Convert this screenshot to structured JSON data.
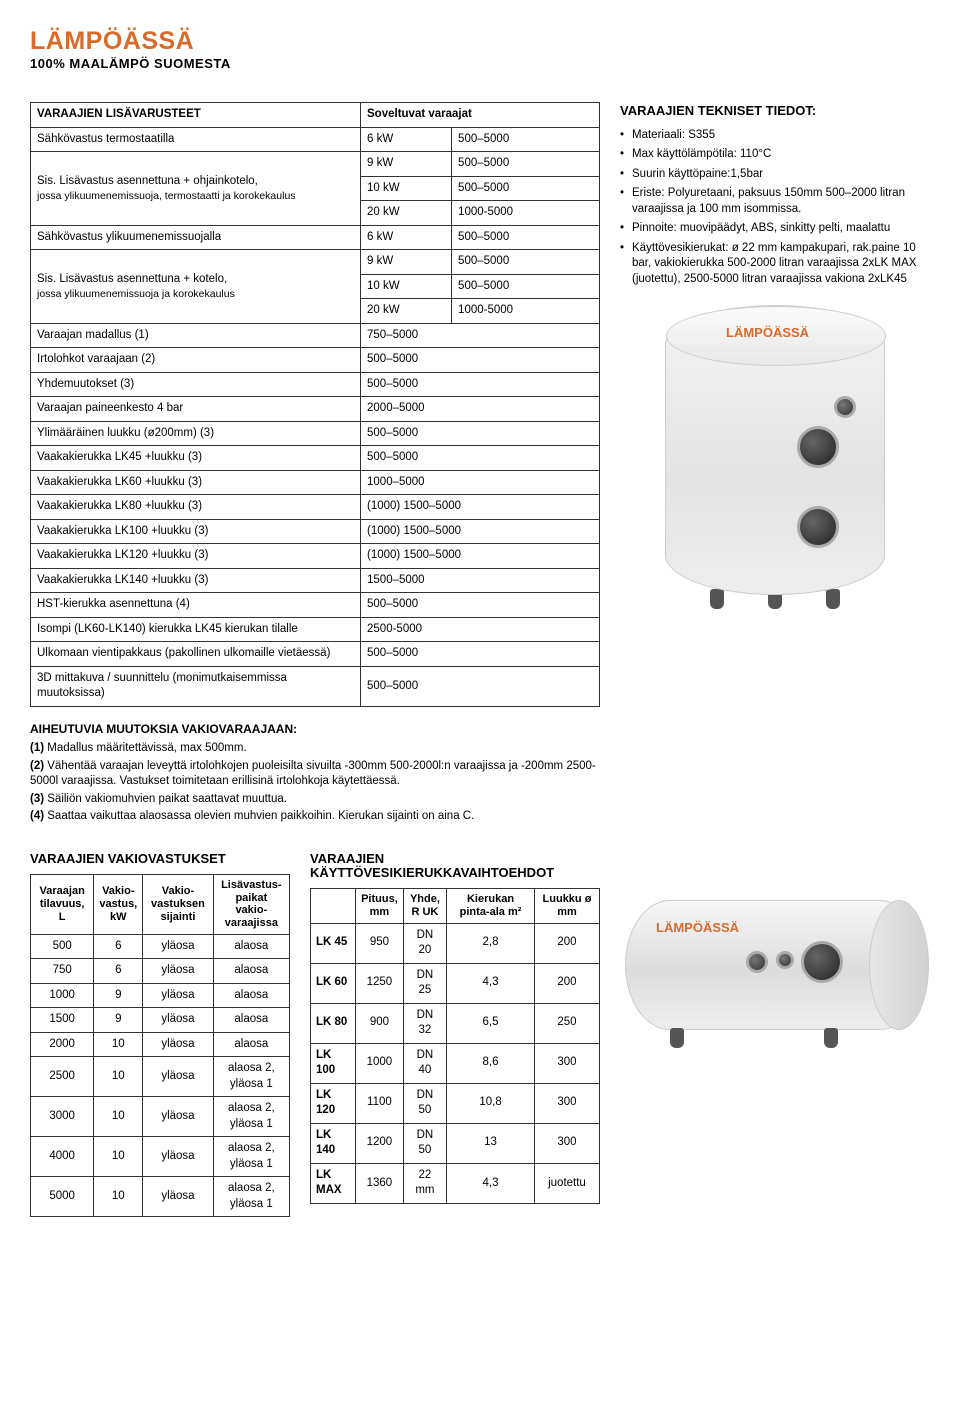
{
  "brand": {
    "main": "LÄMPÖÄSSÄ",
    "sub": "100% MAALÄMPÖ SUOMESTA"
  },
  "headings": {
    "accessories": "VARAAJIEN LISÄVARUSTEET",
    "suitable": "Soveltuvat varaajat",
    "tech": "VARAAJIEN TEKNISET TIEDOT:",
    "notesTitle": "AIHEUTUVIA MUUTOKSIA VAKIOVARAAJAAN:",
    "stdRes": "VARAAJIEN VAKIOVASTUKSET",
    "coils": "VARAAJIEN KÄYTTÖVESIKIERUKKAVAIHTOEHDOT"
  },
  "mainRows": [
    {
      "label": "Sähkövastus termostaatilla",
      "sub": "",
      "col1": "6 kW",
      "col2": "500–5000"
    },
    {
      "label": "Sis. Lisävastus asennettuna + ohjainkotelo,",
      "sub": "jossa ylikuumenemissuoja, termostaatti ja korokekaulus",
      "col1": "9 kW",
      "col2": "500–5000",
      "rowspan": 3
    },
    {
      "col1": "10 kW",
      "col2": "500–5000"
    },
    {
      "col1": "20 kW",
      "col2": "1000-5000"
    },
    {
      "label": "Sähkövastus ylikuumenemissuojalla",
      "sub": "",
      "col1": "6 kW",
      "col2": "500–5000"
    },
    {
      "label": "Sis. Lisävastus asennettuna + kotelo,",
      "sub": "jossa ylikuumenemissuoja ja korokekaulus",
      "col1": "9 kW",
      "col2": "500–5000",
      "rowspan": 3
    },
    {
      "col1": "10 kW",
      "col2": "500–5000"
    },
    {
      "col1": "20 kW",
      "col2": "1000-5000"
    },
    {
      "label": "Varaajan madallus (1)",
      "col2": "750–5000",
      "span": true
    },
    {
      "label": "Irtolohkot varaajaan (2)",
      "col2": "500–5000",
      "span": true
    },
    {
      "label": "Yhdemuutokset (3)",
      "col2": "500–5000",
      "span": true
    },
    {
      "label": "Varaajan paineenkesto 4 bar",
      "col2": "2000–5000",
      "span": true
    },
    {
      "label": "Ylimääräinen luukku (ø200mm) (3)",
      "col2": "500–5000",
      "span": true
    },
    {
      "label": "Vaakakierukka LK45 +luukku (3)",
      "col2": "500–5000",
      "span": true
    },
    {
      "label": "Vaakakierukka LK60 +luukku (3)",
      "col2": "1000–5000",
      "span": true
    },
    {
      "label": "Vaakakierukka LK80 +luukku (3)",
      "col2": "(1000) 1500–5000",
      "span": true
    },
    {
      "label": "Vaakakierukka LK100 +luukku (3)",
      "col2": "(1000) 1500–5000",
      "span": true
    },
    {
      "label": "Vaakakierukka LK120 +luukku (3)",
      "col2": "(1000) 1500–5000",
      "span": true
    },
    {
      "label": "Vaakakierukka LK140 +luukku (3)",
      "col2": "1500–5000",
      "span": true
    },
    {
      "label": "HST-kierukka asennettuna (4)",
      "col2": "500–5000",
      "span": true
    },
    {
      "label": "Isompi (LK60-LK140) kierukka LK45 kierukan tilalle",
      "col2": "2500-5000",
      "span": true
    },
    {
      "label": "Ulkomaan vientipakkaus (pakollinen ulkomaille vietäessä)",
      "col2": "500–5000",
      "span": true
    },
    {
      "label": "3D mittakuva / suunnittelu (monimutkaisemmissa muutoksissa)",
      "col2": "500–5000",
      "span": true
    }
  ],
  "notes": [
    "(1) Madallus määritettävissä, max 500mm.",
    "(2) Vähentää varaajan leveyttä irtolohkojen puoleisilta sivuilta -300mm 500-2000l:n varaajissa ja -200mm 2500-5000l varaajissa. Vastukset toimitetaan erillisinä irtolohkoja käytettäessä.",
    "(3) Säiliön vakiomuhvien paikat saattavat muuttua.",
    "(4) Saattaa vaikuttaa alaosassa olevien muhvien paikkoihin. Kierukan sijainti on aina C."
  ],
  "specs": [
    "Materiaali: S355",
    "Max käyttölämpötila: 110°C",
    "Suurin käyttöpaine:1,5bar",
    "Eriste: Polyuretaani, paksuus 150mm 500–2000 litran varaajissa ja 100 mm isommissa.",
    "Pinnoite: muovipäädyt, ABS, sinkitty pelti, maalattu",
    "Käyttövesikierukat: ø 22 mm kampakupari, rak.paine 10 bar, vakiokierukka 500-2000 litran varaajissa 2xLK MAX (juotettu), 2500-5000 litran varaajissa vakiona 2xLK45"
  ],
  "stdResHead": [
    "Varaajan tilavuus, L",
    "Vakio-vastus, kW",
    "Vakio-vastuksen sijainti",
    "Lisävastus-paikat vakio-varaajissa"
  ],
  "stdResRows": [
    [
      "500",
      "6",
      "yläosa",
      "alaosa"
    ],
    [
      "750",
      "6",
      "yläosa",
      "alaosa"
    ],
    [
      "1000",
      "9",
      "yläosa",
      "alaosa"
    ],
    [
      "1500",
      "9",
      "yläosa",
      "alaosa"
    ],
    [
      "2000",
      "10",
      "yläosa",
      "alaosa"
    ],
    [
      "2500",
      "10",
      "yläosa",
      "alaosa 2, yläosa 1"
    ],
    [
      "3000",
      "10",
      "yläosa",
      "alaosa 2, yläosa 1"
    ],
    [
      "4000",
      "10",
      "yläosa",
      "alaosa 2, yläosa 1"
    ],
    [
      "5000",
      "10",
      "yläosa",
      "alaosa 2, yläosa 1"
    ]
  ],
  "coilsHead": [
    "",
    "Pituus, mm",
    "Yhde, R UK",
    "Kierukan pinta-ala m²",
    "Luukku ø mm"
  ],
  "coilsRows": [
    [
      "LK 45",
      "950",
      "DN 20",
      "2,8",
      "200"
    ],
    [
      "LK 60",
      "1250",
      "DN 25",
      "4,3",
      "200"
    ],
    [
      "LK 80",
      "900",
      "DN 32",
      "6,5",
      "250"
    ],
    [
      "LK 100",
      "1000",
      "DN 40",
      "8,6",
      "300"
    ],
    [
      "LK 120",
      "1100",
      "DN 50",
      "10,8",
      "300"
    ],
    [
      "LK 140",
      "1200",
      "DN 50",
      "13",
      "300"
    ],
    [
      "LK MAX",
      "1360",
      "22 mm",
      "4,3",
      "juotettu"
    ]
  ],
  "colors": {
    "accent": "#d86b2b",
    "border": "#333333",
    "bg": "#ffffff"
  }
}
